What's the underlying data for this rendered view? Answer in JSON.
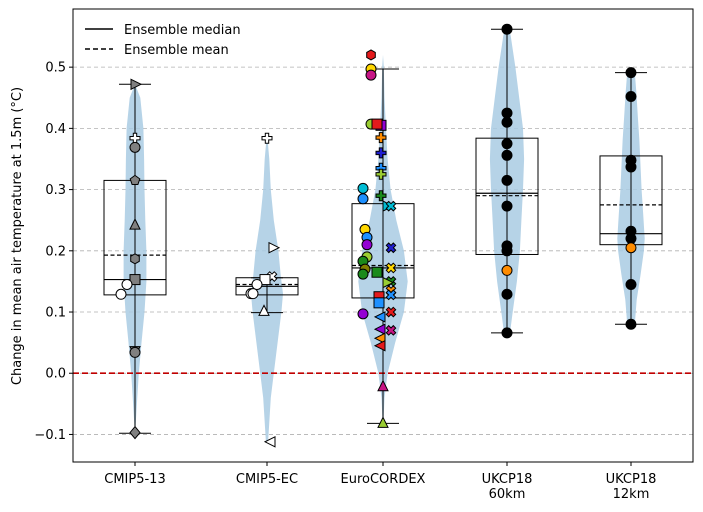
{
  "chart_data": {
    "type": "violin",
    "ylabel": "Change in mean air temperature at 1.5m (°C)",
    "xlabel": "",
    "ylim": [
      -0.145,
      0.595
    ],
    "yticks": [
      -0.1,
      0.0,
      0.1,
      0.2,
      0.3,
      0.4,
      0.5
    ],
    "ytick_labels": [
      "−0.1",
      "0.0",
      "0.1",
      "0.2",
      "0.3",
      "0.4",
      "0.5"
    ],
    "grid": "horizontal dashed",
    "zero_line": {
      "value": 0.0,
      "color": "#c00000"
    },
    "legend": {
      "position": "top-left",
      "entries": [
        {
          "label": "Ensemble median",
          "style": "solid"
        },
        {
          "label": "Ensemble mean",
          "style": "dashed"
        }
      ]
    },
    "categories": [
      {
        "label": [
          "CMIP5-13"
        ],
        "min": -0.098,
        "q1": 0.128,
        "median": 0.153,
        "mean": 0.193,
        "q3": 0.315,
        "max": 0.472,
        "violin": [
          [
            -0.098,
            0.005
          ],
          [
            -0.08,
            0.02
          ],
          [
            -0.05,
            0.05
          ],
          [
            0.0,
            0.1
          ],
          [
            0.05,
            0.17
          ],
          [
            0.1,
            0.25
          ],
          [
            0.15,
            0.3
          ],
          [
            0.2,
            0.3
          ],
          [
            0.25,
            0.27
          ],
          [
            0.3,
            0.25
          ],
          [
            0.35,
            0.24
          ],
          [
            0.4,
            0.22
          ],
          [
            0.45,
            0.14
          ],
          [
            0.472,
            0.0
          ]
        ],
        "points": [
          {
            "y": 0.472,
            "m": "tri-right",
            "c": "#808080"
          },
          {
            "y": 0.384,
            "m": "plus",
            "c": "#ffffff"
          },
          {
            "y": 0.369,
            "m": "circle",
            "c": "#808080"
          },
          {
            "y": 0.315,
            "m": "pentagon",
            "c": "#808080"
          },
          {
            "y": 0.242,
            "m": "tri-up",
            "c": "#808080"
          },
          {
            "y": 0.187,
            "m": "hexagon",
            "c": "#808080"
          },
          {
            "y": 0.153,
            "m": "square",
            "c": "#808080"
          },
          {
            "y": 0.145,
            "m": "circle",
            "c": "#ffffff",
            "dx": -8
          },
          {
            "y": 0.129,
            "m": "circle",
            "c": "#ffffff",
            "dx": -14
          },
          {
            "y": 0.037,
            "m": "triangle-down",
            "c": "#808080"
          },
          {
            "y": 0.034,
            "m": "circle",
            "c": "#808080"
          },
          {
            "y": -0.097,
            "m": "diamond",
            "c": "#808080"
          }
        ]
      },
      {
        "label": [
          "CMIP5-EC"
        ],
        "min": 0.099,
        "q1": 0.128,
        "median": 0.142,
        "mean": 0.145,
        "q3": 0.156,
        "max": 0.156,
        "violin": [
          [
            -0.112,
            0.03
          ],
          [
            -0.08,
            0.06
          ],
          [
            -0.04,
            0.1
          ],
          [
            0.0,
            0.18
          ],
          [
            0.05,
            0.28
          ],
          [
            0.1,
            0.38
          ],
          [
            0.13,
            0.42
          ],
          [
            0.16,
            0.36
          ],
          [
            0.2,
            0.3
          ],
          [
            0.25,
            0.18
          ],
          [
            0.3,
            0.1
          ],
          [
            0.35,
            0.06
          ],
          [
            0.385,
            0.01
          ]
        ],
        "points": [
          {
            "y": 0.384,
            "m": "plus",
            "c": "#ffffff"
          },
          {
            "y": 0.205,
            "m": "tri-right",
            "c": "#ffffff",
            "dx": 6
          },
          {
            "y": 0.158,
            "m": "x",
            "c": "#ffffff",
            "dx": 5
          },
          {
            "y": 0.153,
            "m": "square",
            "c": "#ffffff",
            "dx": -2
          },
          {
            "y": 0.145,
            "m": "circle",
            "c": "#ffffff",
            "dx": -10
          },
          {
            "y": 0.13,
            "m": "circle",
            "c": "#ffffff",
            "dx": -16
          },
          {
            "y": 0.13,
            "m": "circle",
            "c": "#ffffff",
            "dx": -14
          },
          {
            "y": 0.101,
            "m": "tri-up",
            "c": "#ffffff",
            "dx": -3
          },
          {
            "y": -0.112,
            "m": "tri-left",
            "c": "#ffffff",
            "dx": 4
          }
        ]
      },
      {
        "label": [
          "EuroCORDEX"
        ],
        "min": -0.082,
        "q1": 0.123,
        "median": 0.172,
        "mean": 0.176,
        "q3": 0.277,
        "max": 0.497,
        "violin": [
          [
            -0.082,
            0.01
          ],
          [
            -0.04,
            0.04
          ],
          [
            0.0,
            0.12
          ],
          [
            0.05,
            0.32
          ],
          [
            0.1,
            0.55
          ],
          [
            0.15,
            0.65
          ],
          [
            0.2,
            0.55
          ],
          [
            0.25,
            0.35
          ],
          [
            0.3,
            0.2
          ],
          [
            0.35,
            0.12
          ],
          [
            0.4,
            0.08
          ],
          [
            0.45,
            0.04
          ],
          [
            0.5,
            0.02
          ],
          [
            0.52,
            0.0
          ]
        ],
        "points": [
          {
            "y": 0.52,
            "m": "hexagon",
            "c": "#e41a1c",
            "dx": -12
          },
          {
            "y": 0.497,
            "m": "circle",
            "c": "#ffd700",
            "dx": -12
          },
          {
            "y": 0.487,
            "m": "circle",
            "c": "#c71585",
            "dx": -12
          },
          {
            "y": 0.407,
            "m": "circle",
            "c": "#9acd32",
            "dx": -12
          },
          {
            "y": 0.405,
            "m": "square",
            "c": "#9400d3",
            "dx": -2
          },
          {
            "y": 0.407,
            "m": "square",
            "c": "#e41a1c",
            "dx": -6
          },
          {
            "y": 0.385,
            "m": "plus",
            "c": "#ff8c00",
            "dx": -2
          },
          {
            "y": 0.36,
            "m": "plus",
            "c": "#1f1fd0",
            "dx": -2
          },
          {
            "y": 0.335,
            "m": "plus",
            "c": "#1e90ff",
            "dx": -2
          },
          {
            "y": 0.325,
            "m": "plus",
            "c": "#9acd32",
            "dx": -2
          },
          {
            "y": 0.302,
            "m": "circle",
            "c": "#00bcd4",
            "dx": -20
          },
          {
            "y": 0.29,
            "m": "plus",
            "c": "#1b8a1b",
            "dx": -2
          },
          {
            "y": 0.285,
            "m": "circle",
            "c": "#1e90ff",
            "dx": -20
          },
          {
            "y": 0.273,
            "m": "tri-right",
            "c": "#00bcd4",
            "dx": 4
          },
          {
            "y": 0.273,
            "m": "x",
            "c": "#00bcd4",
            "dx": 8
          },
          {
            "y": 0.235,
            "m": "circle",
            "c": "#ffd700",
            "dx": -18
          },
          {
            "y": 0.222,
            "m": "circle",
            "c": "#1e90ff",
            "dx": -16
          },
          {
            "y": 0.21,
            "m": "circle",
            "c": "#9400d3",
            "dx": -16
          },
          {
            "y": 0.205,
            "m": "x",
            "c": "#1f1fd0",
            "dx": 8
          },
          {
            "y": 0.19,
            "m": "circle",
            "c": "#9acd32",
            "dx": -16
          },
          {
            "y": 0.183,
            "m": "circle",
            "c": "#1b8a1b",
            "dx": -20
          },
          {
            "y": 0.172,
            "m": "x",
            "c": "#ffd700",
            "dx": 8
          },
          {
            "y": 0.17,
            "m": "circle",
            "c": "#808000",
            "dx": -18
          },
          {
            "y": 0.165,
            "m": "square",
            "c": "#1b8a1b",
            "dx": -6
          },
          {
            "y": 0.162,
            "m": "circle",
            "c": "#1b8a1b",
            "dx": -20
          },
          {
            "y": 0.15,
            "m": "x",
            "c": "#1b8a1b",
            "dx": 8
          },
          {
            "y": 0.148,
            "m": "tri-right",
            "c": "#9acd32",
            "dx": 4
          },
          {
            "y": 0.135,
            "m": "x",
            "c": "#ff8c00",
            "dx": 8
          },
          {
            "y": 0.128,
            "m": "x",
            "c": "#1e90ff",
            "dx": 8
          },
          {
            "y": 0.125,
            "m": "square",
            "c": "#e41a1c",
            "dx": -4
          },
          {
            "y": 0.115,
            "m": "square",
            "c": "#1e90ff",
            "dx": -4
          },
          {
            "y": 0.1,
            "m": "x",
            "c": "#e41a1c",
            "dx": 8
          },
          {
            "y": 0.097,
            "m": "circle",
            "c": "#9400d3",
            "dx": -20
          },
          {
            "y": 0.092,
            "m": "tri-left",
            "c": "#1e90ff",
            "dx": -2
          },
          {
            "y": 0.072,
            "m": "tri-left",
            "c": "#9400d3",
            "dx": -2
          },
          {
            "y": 0.07,
            "m": "x",
            "c": "#c71585",
            "dx": 8
          },
          {
            "y": 0.057,
            "m": "tri-left",
            "c": "#ff8c00",
            "dx": -2
          },
          {
            "y": 0.045,
            "m": "tri-left",
            "c": "#e41a1c",
            "dx": -2
          },
          {
            "y": -0.022,
            "m": "tri-up",
            "c": "#c71585",
            "dx": 0
          },
          {
            "y": -0.082,
            "m": "tri-up",
            "c": "#9acd32",
            "dx": 0
          }
        ]
      },
      {
        "label": [
          "UKCP18",
          "60km"
        ],
        "min": 0.066,
        "q1": 0.194,
        "median": 0.294,
        "mean": 0.29,
        "q3": 0.384,
        "max": 0.562,
        "violin": [
          [
            0.066,
            0.08
          ],
          [
            0.1,
            0.15
          ],
          [
            0.15,
            0.26
          ],
          [
            0.2,
            0.34
          ],
          [
            0.25,
            0.38
          ],
          [
            0.3,
            0.42
          ],
          [
            0.35,
            0.45
          ],
          [
            0.4,
            0.42
          ],
          [
            0.45,
            0.32
          ],
          [
            0.5,
            0.22
          ],
          [
            0.55,
            0.1
          ],
          [
            0.562,
            0.06
          ]
        ],
        "points": [
          {
            "y": 0.562,
            "m": "circle",
            "c": "#000000"
          },
          {
            "y": 0.425,
            "m": "circle",
            "c": "#000000"
          },
          {
            "y": 0.41,
            "m": "circle",
            "c": "#000000"
          },
          {
            "y": 0.375,
            "m": "circle",
            "c": "#000000"
          },
          {
            "y": 0.356,
            "m": "circle",
            "c": "#000000"
          },
          {
            "y": 0.315,
            "m": "circle",
            "c": "#000000"
          },
          {
            "y": 0.273,
            "m": "circle",
            "c": "#000000"
          },
          {
            "y": 0.208,
            "m": "circle",
            "c": "#000000"
          },
          {
            "y": 0.2,
            "m": "circle",
            "c": "#000000"
          },
          {
            "y": 0.168,
            "m": "circle",
            "c": "#ff8c00"
          },
          {
            "y": 0.129,
            "m": "circle",
            "c": "#000000"
          },
          {
            "y": 0.066,
            "m": "circle",
            "c": "#000000"
          }
        ]
      },
      {
        "label": [
          "UKCP18",
          "12km"
        ],
        "min": 0.08,
        "q1": 0.21,
        "median": 0.228,
        "mean": 0.275,
        "q3": 0.355,
        "max": 0.491,
        "violin": [
          [
            0.08,
            0.1
          ],
          [
            0.12,
            0.15
          ],
          [
            0.16,
            0.25
          ],
          [
            0.2,
            0.34
          ],
          [
            0.22,
            0.36
          ],
          [
            0.26,
            0.32
          ],
          [
            0.3,
            0.28
          ],
          [
            0.34,
            0.25
          ],
          [
            0.38,
            0.22
          ],
          [
            0.42,
            0.18
          ],
          [
            0.46,
            0.14
          ],
          [
            0.491,
            0.1
          ]
        ],
        "points": [
          {
            "y": 0.491,
            "m": "circle",
            "c": "#000000"
          },
          {
            "y": 0.452,
            "m": "circle",
            "c": "#000000"
          },
          {
            "y": 0.348,
            "m": "circle",
            "c": "#000000"
          },
          {
            "y": 0.337,
            "m": "circle",
            "c": "#000000"
          },
          {
            "y": 0.232,
            "m": "circle",
            "c": "#000000"
          },
          {
            "y": 0.22,
            "m": "circle",
            "c": "#000000"
          },
          {
            "y": 0.205,
            "m": "circle",
            "c": "#ff8c00"
          },
          {
            "y": 0.145,
            "m": "circle",
            "c": "#000000"
          },
          {
            "y": 0.08,
            "m": "circle",
            "c": "#000000"
          }
        ]
      }
    ],
    "colors": {
      "violin": "#a9cbe3",
      "box": "#000000",
      "zero_line": "#c00000",
      "grid": "#b0b0b0"
    }
  }
}
